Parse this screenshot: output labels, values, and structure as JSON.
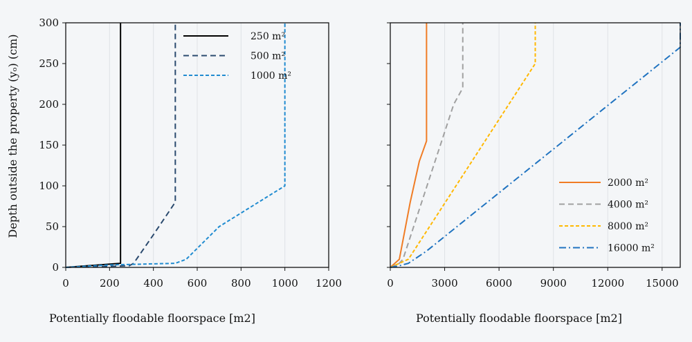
{
  "chart_data": [
    {
      "type": "line",
      "title": "",
      "xlabel": "Potentially floodable floorspace [m2]",
      "ylabel": "Depth outside the property (yₒ) (cm)",
      "xlim": [
        0,
        1200
      ],
      "ylim": [
        0,
        300
      ],
      "xticks": [
        0,
        200,
        400,
        600,
        800,
        1000,
        1200
      ],
      "xtick_labels": [
        "0",
        "200",
        "400",
        "600",
        "800",
        "1000",
        "1200"
      ],
      "yticks": [
        0,
        50,
        100,
        150,
        200,
        250,
        300
      ],
      "ytick_labels": [
        "0",
        "50",
        "100",
        "150",
        "200",
        "250",
        "300"
      ],
      "grid": "vertical",
      "legend_position": "top-right",
      "series": [
        {
          "name": "250 m²",
          "color": "#000000",
          "dash": "solid",
          "x": [
            0,
            250,
            250
          ],
          "y": [
            0,
            5,
            300
          ]
        },
        {
          "name": "500 m²",
          "color": "#2a4a6e",
          "dash": "dash",
          "x": [
            0,
            290,
            310,
            400,
            500,
            500
          ],
          "y": [
            0,
            2,
            5,
            40,
            80,
            300
          ]
        },
        {
          "name": "1000 m²",
          "color": "#1f8bd0",
          "dash": "shortdash",
          "x": [
            0,
            200,
            500,
            550,
            700,
            1000,
            1000
          ],
          "y": [
            0,
            3,
            5,
            10,
            50,
            100,
            300
          ]
        }
      ]
    },
    {
      "type": "line",
      "title": "",
      "xlabel": "Potentially floodable floorspace [m2]",
      "ylabel": "",
      "xlim": [
        0,
        16000
      ],
      "ylim": [
        0,
        300
      ],
      "xticks": [
        0,
        3000,
        6000,
        9000,
        12000,
        15000
      ],
      "xtick_labels": [
        "0",
        "3000",
        "6000",
        "9000",
        "12000",
        "15000"
      ],
      "yticks": [
        0,
        50,
        100,
        150,
        200,
        250,
        300
      ],
      "grid": "vertical",
      "legend_position": "bottom-right",
      "series": [
        {
          "name": "2000 m²",
          "color": "#f07c24",
          "dash": "solid",
          "x": [
            0,
            500,
            1100,
            1600,
            2000,
            2000
          ],
          "y": [
            0,
            10,
            80,
            130,
            155,
            300
          ]
        },
        {
          "name": "4000 m²",
          "color": "#a0a0a0",
          "dash": "dash",
          "x": [
            0,
            500,
            700,
            3500,
            4000,
            4000
          ],
          "y": [
            0,
            5,
            10,
            200,
            220,
            300
          ]
        },
        {
          "name": "8000 m²",
          "color": "#ffb800",
          "dash": "shortdash",
          "x": [
            0,
            500,
            1000,
            8000,
            8000
          ],
          "y": [
            0,
            5,
            10,
            250,
            300
          ]
        },
        {
          "name": "16000 m²",
          "color": "#1f73c0",
          "dash": "dashdot",
          "x": [
            0,
            500,
            1000,
            2000,
            16000,
            16000
          ],
          "y": [
            0,
            2,
            5,
            20,
            270,
            300
          ]
        }
      ]
    }
  ]
}
